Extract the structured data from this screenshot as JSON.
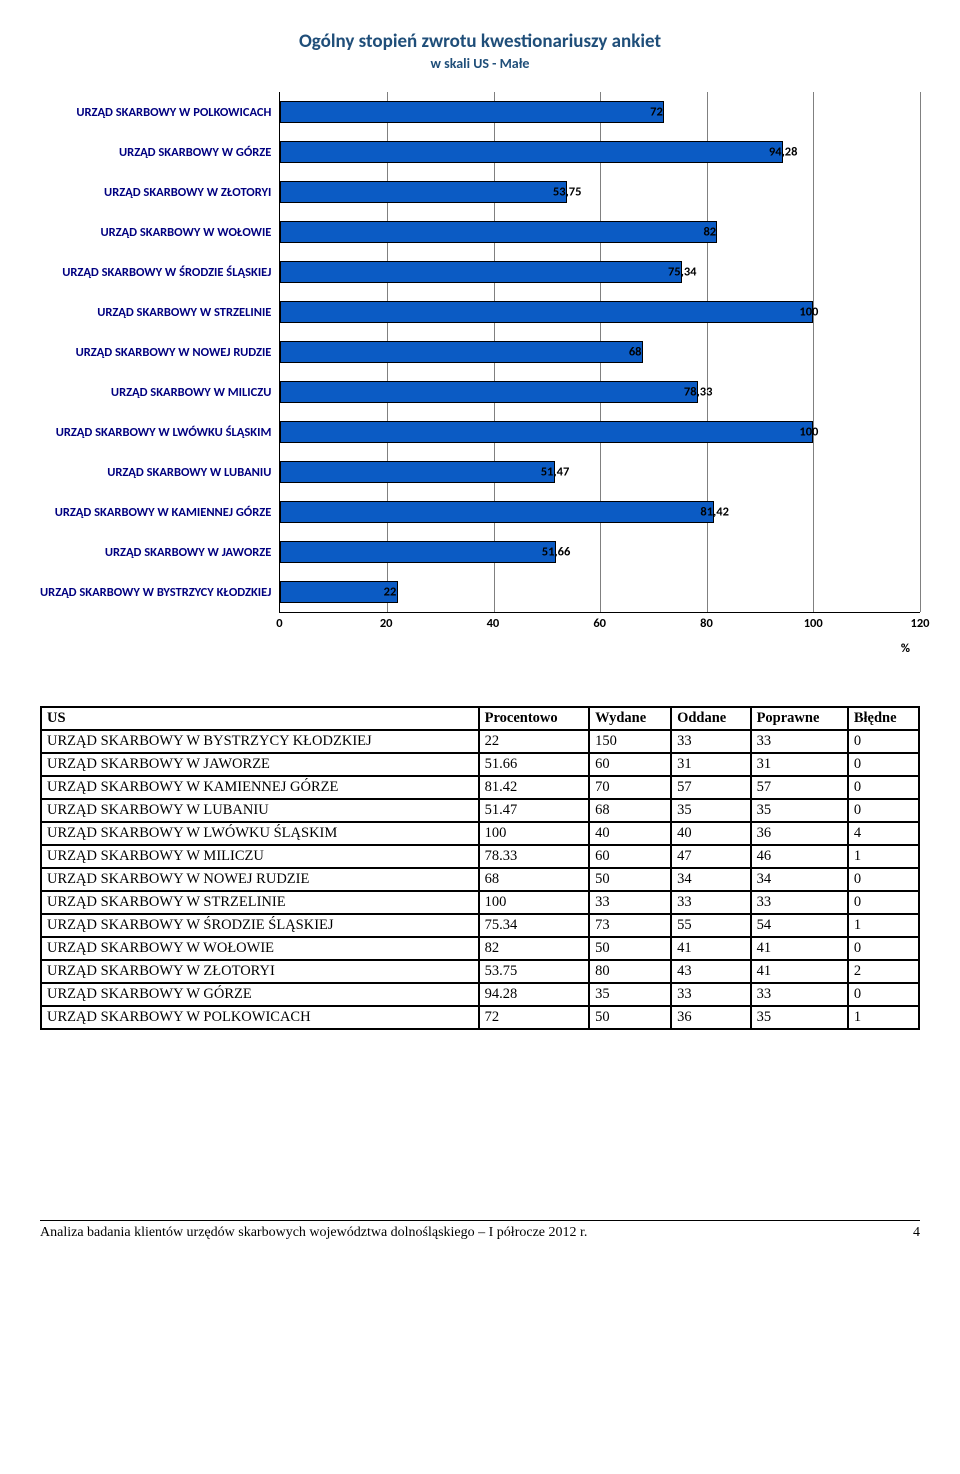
{
  "chart": {
    "title": "Ogólny stopień zwrotu kwestionariuszy ankiet",
    "subtitle": "w skali US - Małe",
    "title_color": "#1f4e79",
    "bar_color": "#0b5bc4",
    "bar_border_color": "#000000",
    "grid_color": "#808080",
    "axis_color": "#000000",
    "xmin": 0,
    "xmax": 120,
    "xtick_step": 20,
    "xticks": [
      "0",
      "20",
      "40",
      "60",
      "80",
      "100",
      "120"
    ],
    "x_unit_label": "%",
    "y_label_color": "#000080",
    "bars": [
      {
        "label": "URZĄD SKARBOWY W POLKOWICACH",
        "value": 72,
        "value_label": "72"
      },
      {
        "label": "URZĄD SKARBOWY W GÓRZE",
        "value": 94.28,
        "value_label": "94,28"
      },
      {
        "label": "URZĄD SKARBOWY W ZŁOTORYI",
        "value": 53.75,
        "value_label": "53,75"
      },
      {
        "label": "URZĄD SKARBOWY W WOŁOWIE",
        "value": 82,
        "value_label": "82"
      },
      {
        "label": "URZĄD SKARBOWY W ŚRODZIE ŚLĄSKIEJ",
        "value": 75.34,
        "value_label": "75,34"
      },
      {
        "label": "URZĄD SKARBOWY W STRZELINIE",
        "value": 100,
        "value_label": "100"
      },
      {
        "label": "URZĄD SKARBOWY W NOWEJ RUDZIE",
        "value": 68,
        "value_label": "68"
      },
      {
        "label": "URZĄD SKARBOWY W MILICZU",
        "value": 78.33,
        "value_label": "78,33"
      },
      {
        "label": "URZĄD SKARBOWY W LWÓWKU ŚLĄSKIM",
        "value": 100,
        "value_label": "100"
      },
      {
        "label": "URZĄD SKARBOWY W LUBANIU",
        "value": 51.47,
        "value_label": "51,47"
      },
      {
        "label": "URZĄD SKARBOWY W KAMIENNEJ GÓRZE",
        "value": 81.42,
        "value_label": "81,42"
      },
      {
        "label": "URZĄD SKARBOWY W JAWORZE",
        "value": 51.66,
        "value_label": "51,66"
      },
      {
        "label": "URZĄD SKARBOWY W BYSTRZYCY KŁODZKIEJ",
        "value": 22,
        "value_label": "22"
      }
    ]
  },
  "table": {
    "columns": [
      "US",
      "Procentowo",
      "Wydane",
      "Oddane",
      "Poprawne",
      "Błędne"
    ],
    "rows": [
      [
        "URZĄD SKARBOWY W BYSTRZYCY KŁODZKIEJ",
        "22",
        "150",
        "33",
        "33",
        "0"
      ],
      [
        "URZĄD SKARBOWY W JAWORZE",
        "51.66",
        "60",
        "31",
        "31",
        "0"
      ],
      [
        "URZĄD SKARBOWY W KAMIENNEJ GÓRZE",
        "81.42",
        "70",
        "57",
        "57",
        "0"
      ],
      [
        "URZĄD SKARBOWY W LUBANIU",
        "51.47",
        "68",
        "35",
        "35",
        "0"
      ],
      [
        "URZĄD SKARBOWY W LWÓWKU ŚLĄSKIM",
        "100",
        "40",
        "40",
        "36",
        "4"
      ],
      [
        "URZĄD SKARBOWY W MILICZU",
        "78.33",
        "60",
        "47",
        "46",
        "1"
      ],
      [
        "URZĄD SKARBOWY W NOWEJ RUDZIE",
        "68",
        "50",
        "34",
        "34",
        "0"
      ],
      [
        "URZĄD SKARBOWY W STRZELINIE",
        "100",
        "33",
        "33",
        "33",
        "0"
      ],
      [
        "URZĄD SKARBOWY W ŚRODZIE ŚLĄSKIEJ",
        "75.34",
        "73",
        "55",
        "54",
        "1"
      ],
      [
        "URZĄD SKARBOWY W WOŁOWIE",
        "82",
        "50",
        "41",
        "41",
        "0"
      ],
      [
        "URZĄD SKARBOWY W ZŁOTORYI",
        "53.75",
        "80",
        "43",
        "41",
        "2"
      ],
      [
        "URZĄD SKARBOWY W GÓRZE",
        "94.28",
        "35",
        "33",
        "33",
        "0"
      ],
      [
        "URZĄD SKARBOWY W POLKOWICACH",
        "72",
        "50",
        "36",
        "35",
        "1"
      ]
    ]
  },
  "footer": {
    "text": "Analiza badania klientów urzędów skarbowych województwa dolnośląskiego – I półrocze 2012 r.",
    "page": "4"
  }
}
